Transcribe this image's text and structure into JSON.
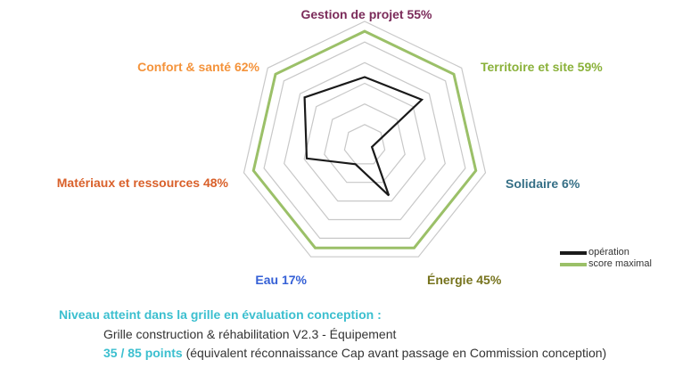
{
  "chart_data": {
    "type": "radar",
    "axes": [
      {
        "label": "Gestion de projet",
        "value_label": "55%",
        "value": 55,
        "color": "#7b2b5a"
      },
      {
        "label": "Territoire et site",
        "value_label": "59%",
        "value": 59,
        "color": "#8ab13a"
      },
      {
        "label": "Solidaire",
        "value_label": "6%",
        "value": 6,
        "color": "#356f86"
      },
      {
        "label": "Énergie",
        "value_label": "45%",
        "value": 45,
        "color": "#76731d"
      },
      {
        "label": "Eau",
        "value_label": "17%",
        "value": 17,
        "color": "#3560d6"
      },
      {
        "label": "Matériaux et ressources",
        "value_label": "48%",
        "value": 48,
        "color": "#d9602a"
      },
      {
        "label": "Confort & santé",
        "value_label": "62%",
        "value": 62,
        "color": "#f4933b"
      }
    ],
    "series": [
      {
        "name": "opération",
        "color": "#1a1a1a",
        "values": [
          55,
          59,
          6,
          45,
          17,
          48,
          62
        ]
      },
      {
        "name": "score maximal",
        "color": "#9bc068",
        "values": [
          92,
          92,
          92,
          92,
          92,
          92,
          92
        ]
      }
    ],
    "range": [
      0,
      100
    ],
    "grid_rings": 6,
    "grid": true,
    "legend_position": "bottom-right"
  },
  "footer": {
    "heading": "Niveau atteint dans la grille en évaluation conception :",
    "grid_name": "Grille construction & réhabilitation V2.3 - Équipement",
    "points": "35 / 85 points",
    "points_note": " (équivalent réconnaissance Cap avant passage en Commission conception)"
  },
  "colors": {
    "heading": "#3bbfcf",
    "points": "#3bbfcf",
    "grid": "#c8c8c8",
    "text": "#333333"
  }
}
